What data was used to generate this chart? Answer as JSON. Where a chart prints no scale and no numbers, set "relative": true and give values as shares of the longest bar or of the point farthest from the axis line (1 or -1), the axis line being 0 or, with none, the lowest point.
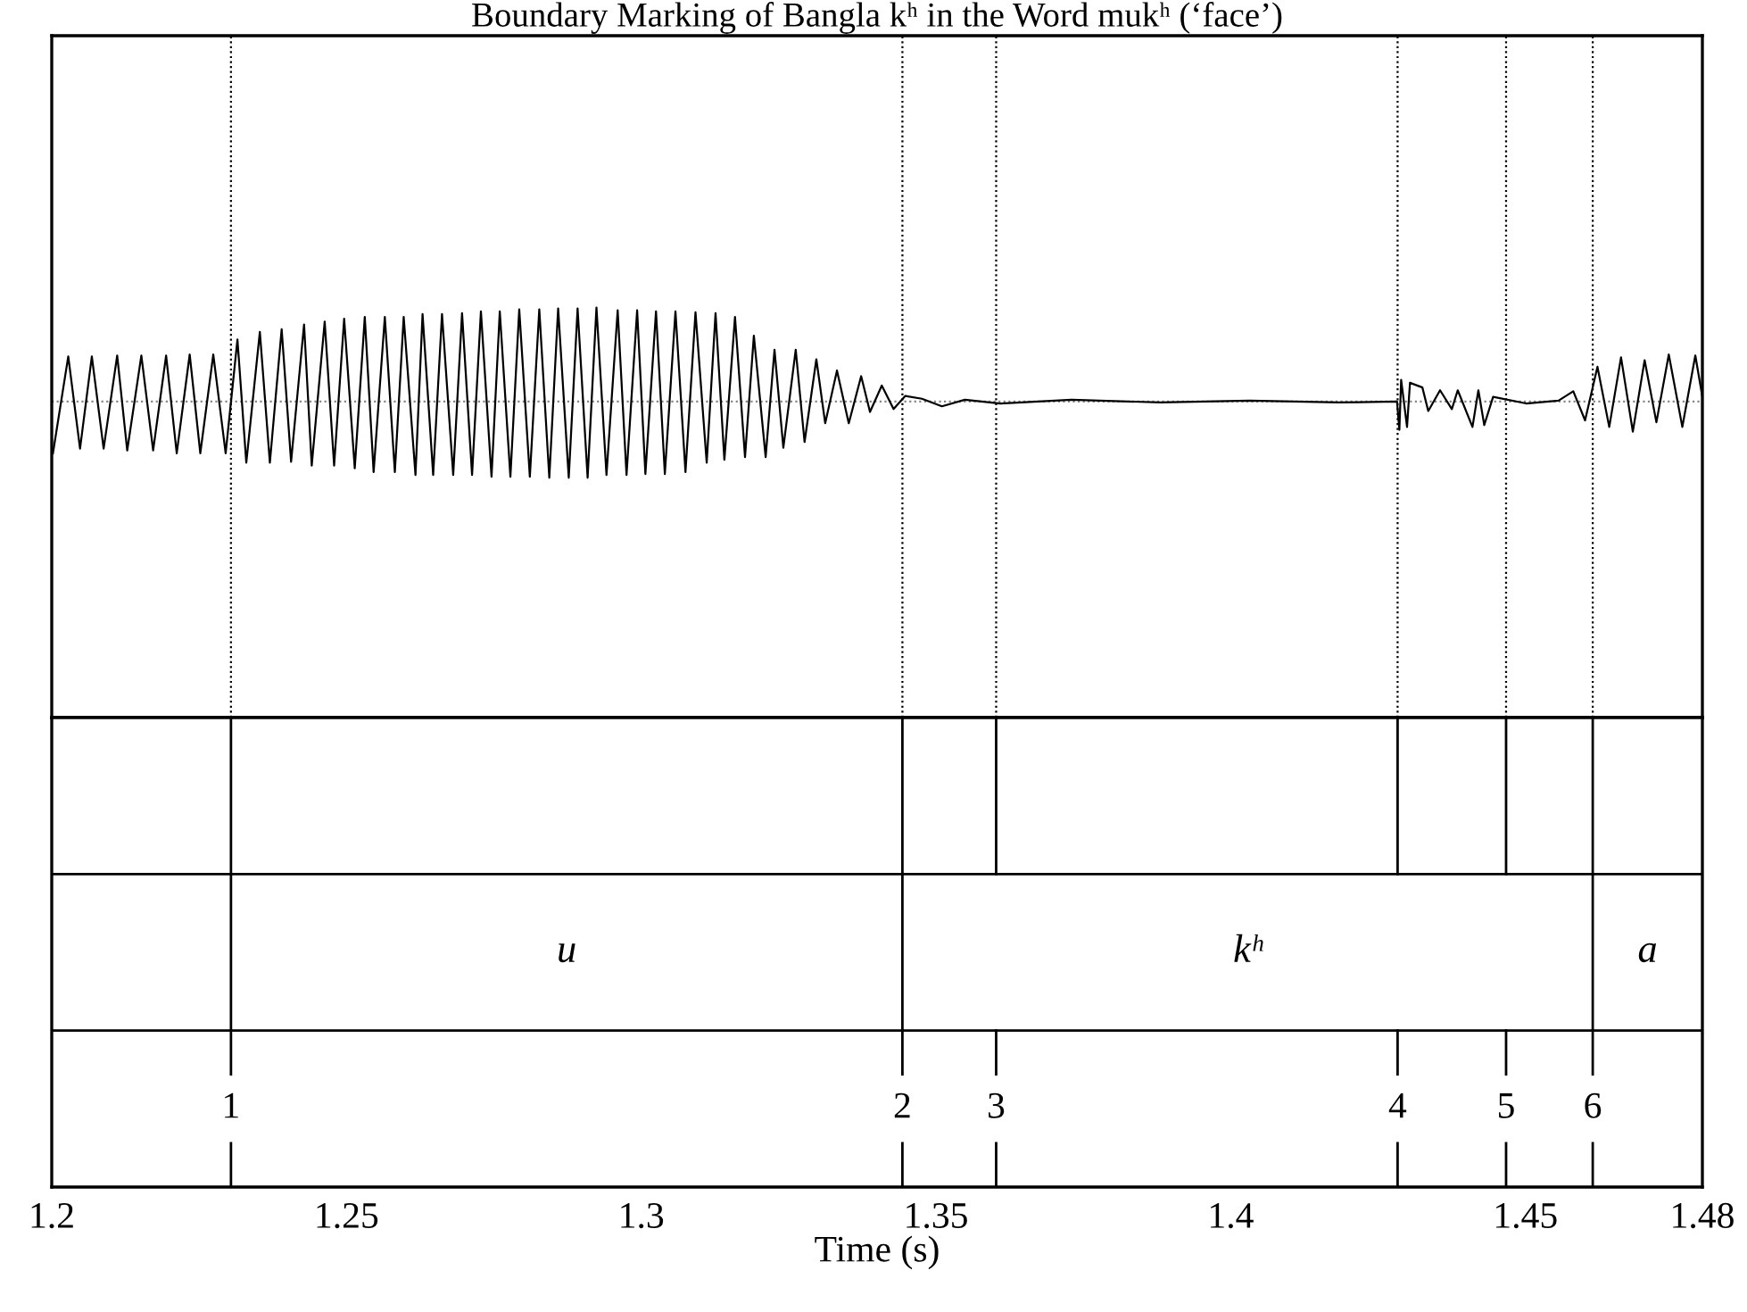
{
  "chart_data": {
    "type": "line",
    "title": "Boundary Marking of Bangla kʰ in the Word mukʰ (‘face’)",
    "xlabel": "Time (s)",
    "relative": true,
    "xlim": [
      1.2,
      1.48
    ],
    "xticks": [
      1.2,
      1.25,
      1.3,
      1.35,
      1.4,
      1.45,
      1.48
    ],
    "series": [
      {
        "color": "#000000",
        "x": [
          1.2002,
          1.2028,
          1.2048,
          1.2068,
          1.2088,
          1.2111,
          1.2128,
          1.2152,
          1.2172,
          1.2194,
          1.2212,
          1.2234,
          1.2252,
          1.2274,
          1.2295,
          1.2315,
          1.233,
          1.2353,
          1.237,
          1.239,
          1.2406,
          1.2428,
          1.2441,
          1.2463,
          1.2479,
          1.2496,
          1.2514,
          1.2531,
          1.2546,
          1.2565,
          1.2582,
          1.2597,
          1.2617,
          1.2629,
          1.2647,
          1.2662,
          1.2681,
          1.2696,
          1.2713,
          1.2728,
          1.2746,
          1.276,
          1.2778,
          1.2793,
          1.2811,
          1.2827,
          1.2844,
          1.2859,
          1.2877,
          1.2892,
          1.2909,
          1.2924,
          1.2941,
          1.296,
          1.2975,
          1.2993,
          1.3007,
          1.3025,
          1.304,
          1.3058,
          1.3075,
          1.3092,
          1.3111,
          1.3126,
          1.3141,
          1.3159,
          1.3176,
          1.3191,
          1.3211,
          1.3226,
          1.3241,
          1.3262,
          1.3277,
          1.3297,
          1.3312,
          1.3332,
          1.3352,
          1.3373,
          1.3388,
          1.3408,
          1.3428,
          1.3448,
          1.3476,
          1.351,
          1.3549,
          1.3609,
          1.373,
          1.3881,
          1.4032,
          1.4183,
          1.4282,
          1.4286,
          1.4289,
          1.4299,
          1.4304,
          1.4325,
          1.4335,
          1.4355,
          1.4375,
          1.4385,
          1.441,
          1.442,
          1.443,
          1.4445,
          1.4501,
          1.4556,
          1.4581,
          1.4601,
          1.4622,
          1.4642,
          1.4662,
          1.4682,
          1.4702,
          1.4722,
          1.4743,
          1.4766,
          1.4788,
          1.48
        ],
        "values": [
          -0.55,
          0.48,
          -0.5,
          0.48,
          -0.5,
          0.49,
          -0.52,
          0.49,
          -0.52,
          0.49,
          -0.55,
          0.5,
          -0.55,
          0.5,
          -0.55,
          0.66,
          -0.65,
          0.74,
          -0.65,
          0.77,
          -0.64,
          0.82,
          -0.68,
          0.85,
          -0.68,
          0.88,
          -0.71,
          0.9,
          -0.75,
          0.9,
          -0.75,
          0.9,
          -0.78,
          0.93,
          -0.78,
          0.93,
          -0.78,
          0.94,
          -0.78,
          0.96,
          -0.8,
          0.96,
          -0.8,
          0.98,
          -0.8,
          0.98,
          -0.81,
          0.99,
          -0.81,
          0.99,
          -0.81,
          1.0,
          -0.78,
          0.97,
          -0.78,
          0.97,
          -0.77,
          0.96,
          -0.77,
          0.96,
          -0.75,
          0.95,
          -0.65,
          0.94,
          -0.62,
          0.9,
          -0.59,
          0.7,
          -0.59,
          0.55,
          -0.49,
          0.55,
          -0.43,
          0.45,
          -0.23,
          0.33,
          -0.23,
          0.27,
          -0.11,
          0.17,
          -0.08,
          0.06,
          0.03,
          -0.05,
          0.02,
          -0.02,
          0.02,
          -0.01,
          0.01,
          -0.01,
          0,
          -0.3,
          0.23,
          -0.27,
          0.2,
          0.15,
          -0.1,
          0.12,
          -0.08,
          0.12,
          -0.27,
          0.12,
          -0.25,
          0.05,
          -0.02,
          0.01,
          0.11,
          -0.2,
          0.37,
          -0.27,
          0.47,
          -0.32,
          0.44,
          -0.22,
          0.5,
          -0.27,
          0.49,
          0.05
        ]
      }
    ],
    "ref_lines": [
      {
        "axis": "y",
        "value": 0,
        "color": "#888888",
        "line_style": "dotted"
      },
      {
        "axis": "x",
        "value": 1.2304,
        "line_style": "dotted",
        "color": "#000000"
      },
      {
        "axis": "x",
        "value": 1.3443,
        "line_style": "dotted",
        "color": "#000000"
      },
      {
        "axis": "x",
        "value": 1.3602,
        "line_style": "dotted"
      },
      {
        "axis": "x",
        "value": 1.4283,
        "line_style": "dotted"
      },
      {
        "axis": "x",
        "value": 1.4467,
        "line_style": "dotted"
      },
      {
        "axis": "x",
        "value": 1.4614,
        "line_style": "dotted",
        "color": "#000000"
      }
    ],
    "annotations": [
      "1",
      "2",
      "3",
      "4",
      "5",
      "6",
      "u",
      "kʰ",
      "a"
    ]
  }
}
